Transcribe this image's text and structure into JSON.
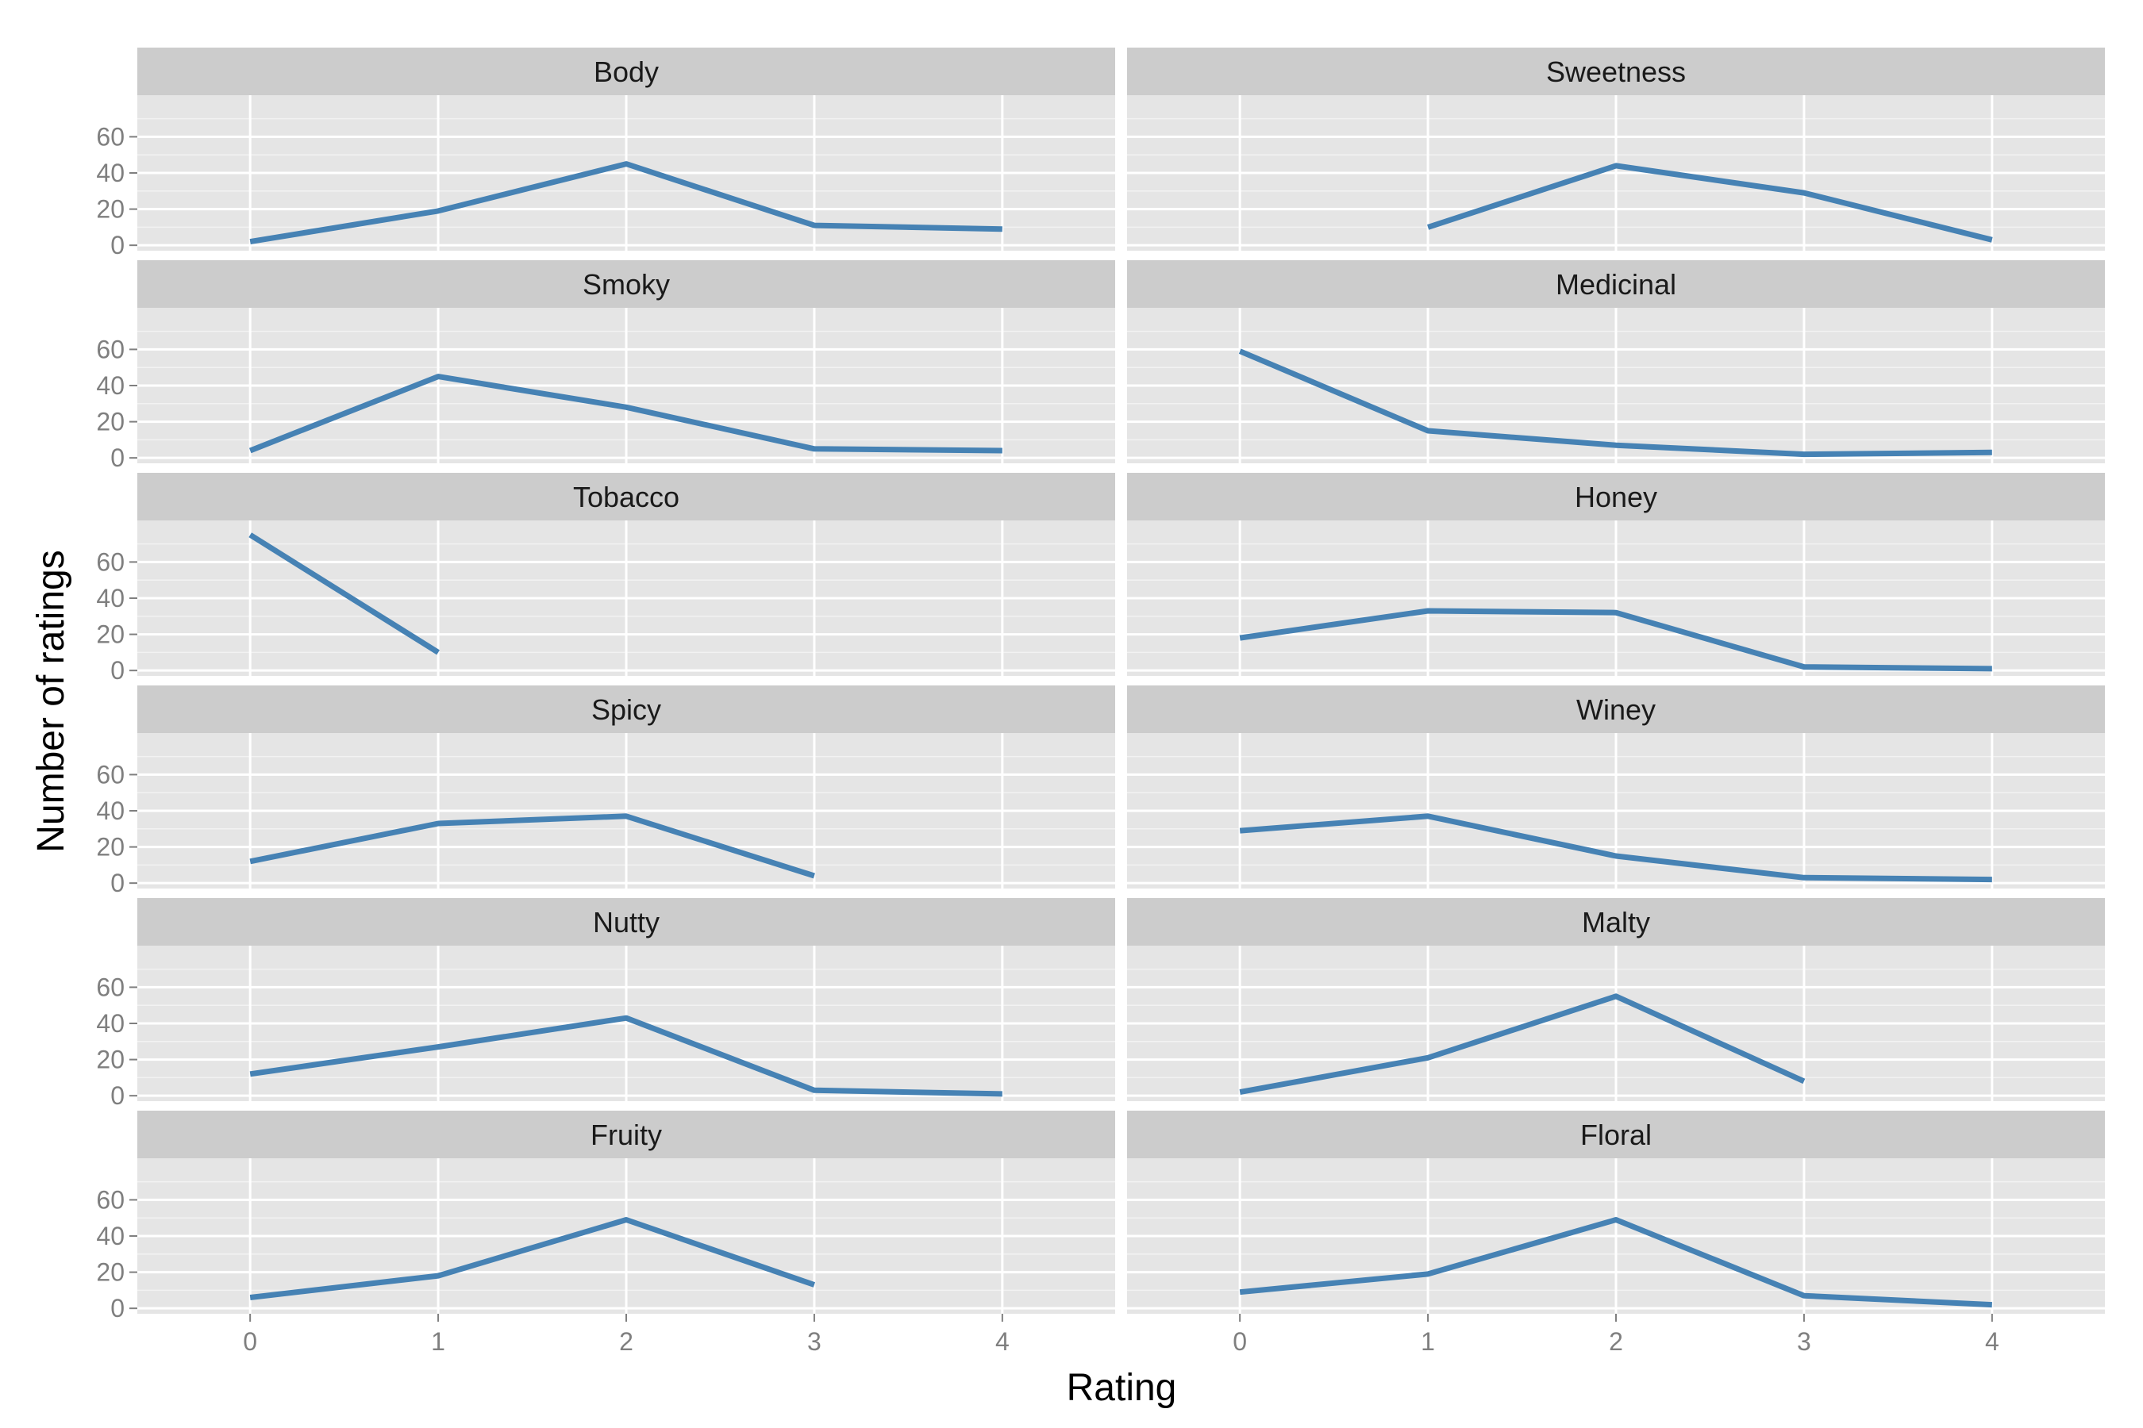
{
  "chart_data": {
    "type": "line",
    "layout": "facet_wrap",
    "ncol": 2,
    "xlabel": "Rating",
    "ylabel": "Number of ratings",
    "x_ticks": [
      0,
      1,
      2,
      3,
      4
    ],
    "y_ticks": [
      0,
      20,
      40,
      60
    ],
    "xlim": [
      -0.6,
      4.6
    ],
    "ylim": [
      -3,
      83
    ],
    "grid": true,
    "colors": {
      "line": "#4682b4",
      "panel": "#e5e5e5",
      "strip": "#cccccc",
      "grid": "#ffffff"
    },
    "facets": [
      {
        "name": "Body",
        "x": [
          0,
          1,
          2,
          3,
          4
        ],
        "y": [
          2,
          19,
          45,
          11,
          9
        ]
      },
      {
        "name": "Sweetness",
        "x": [
          1,
          2,
          3,
          4
        ],
        "y": [
          10,
          44,
          29,
          3
        ]
      },
      {
        "name": "Smoky",
        "x": [
          0,
          1,
          2,
          3,
          4
        ],
        "y": [
          4,
          45,
          28,
          5,
          4
        ]
      },
      {
        "name": "Medicinal",
        "x": [
          0,
          1,
          2,
          3,
          4
        ],
        "y": [
          59,
          15,
          7,
          2,
          3
        ]
      },
      {
        "name": "Tobacco",
        "x": [
          0,
          1
        ],
        "y": [
          75,
          10
        ]
      },
      {
        "name": "Honey",
        "x": [
          0,
          1,
          2,
          3,
          4
        ],
        "y": [
          18,
          33,
          32,
          2,
          1
        ]
      },
      {
        "name": "Spicy",
        "x": [
          0,
          1,
          2,
          3
        ],
        "y": [
          12,
          33,
          37,
          4
        ]
      },
      {
        "name": "Winey",
        "x": [
          0,
          1,
          2,
          3,
          4
        ],
        "y": [
          29,
          37,
          15,
          3,
          2
        ]
      },
      {
        "name": "Nutty",
        "x": [
          0,
          1,
          2,
          3,
          4
        ],
        "y": [
          12,
          27,
          43,
          3,
          1
        ]
      },
      {
        "name": "Malty",
        "x": [
          0,
          1,
          2,
          3
        ],
        "y": [
          2,
          21,
          55,
          8
        ]
      },
      {
        "name": "Fruity",
        "x": [
          0,
          1,
          2,
          3
        ],
        "y": [
          6,
          18,
          49,
          13
        ]
      },
      {
        "name": "Floral",
        "x": [
          0,
          1,
          2,
          3,
          4
        ],
        "y": [
          9,
          19,
          49,
          7,
          2
        ]
      }
    ]
  }
}
